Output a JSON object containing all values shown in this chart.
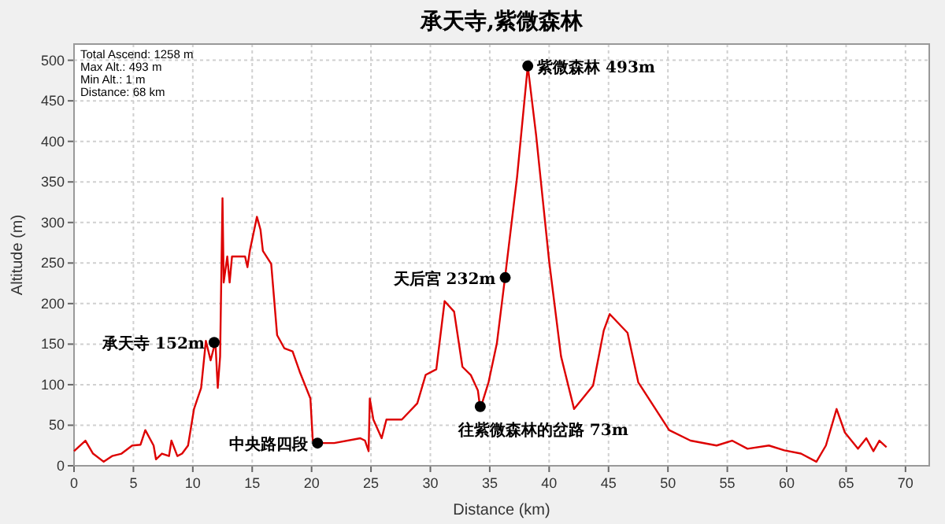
{
  "chart_data": {
    "type": "line",
    "title": "承天寺,紫微森林",
    "xlabel": "Distance (km)",
    "ylabel": "Altitude (m)",
    "xlim": [
      0,
      72
    ],
    "ylim": [
      0,
      520
    ],
    "xticks": [
      0,
      5,
      10,
      15,
      20,
      25,
      30,
      35,
      40,
      45,
      50,
      55,
      60,
      65,
      70
    ],
    "yticks": [
      0,
      50,
      100,
      150,
      200,
      250,
      300,
      350,
      400,
      450,
      500
    ],
    "grid": true,
    "marker": "none",
    "line_style": "solid",
    "series": [
      {
        "color": "#dd0000",
        "x": [
          0,
          0.96,
          1.6,
          2.5,
          3.2,
          4.0,
          4.9,
          5.6,
          6.0,
          6.7,
          6.9,
          7.4,
          8.0,
          8.2,
          8.7,
          9.1,
          9.6,
          10.1,
          10.7,
          11.1,
          11.5,
          11.9,
          12.1,
          12.3,
          12.5,
          12.6,
          12.9,
          13.1,
          13.3,
          14.4,
          14.6,
          14.8,
          15.4,
          15.7,
          15.9,
          16.6,
          17.1,
          17.7,
          18.4,
          19.0,
          19.9,
          20.1,
          20.5,
          21.9,
          24.1,
          24.5,
          24.8,
          24.9,
          25.2,
          25.9,
          26.3,
          27.6,
          28.9,
          29.6,
          30.5,
          31.2,
          32.0,
          32.7,
          33.4,
          34.0,
          34.2,
          34.9,
          35.6,
          36.3,
          37.3,
          38.2,
          38.9,
          40.0,
          41.0,
          42.1,
          43.7,
          44.6,
          45.1,
          46.6,
          47.5,
          50.1,
          51.9,
          54.1,
          55.4,
          56.7,
          58.5,
          59.8,
          61.2,
          62.5,
          63.3,
          64.2,
          64.9,
          66.0,
          66.7,
          67.3,
          67.8,
          68.4
        ],
        "values": [
          18,
          31,
          15,
          5,
          12,
          15,
          25,
          26,
          44,
          25,
          8,
          15,
          12,
          31,
          12,
          15,
          25,
          70,
          96,
          154,
          130,
          153,
          96,
          135,
          330,
          226,
          258,
          226,
          258,
          258,
          245,
          265,
          307,
          291,
          265,
          249,
          161,
          145,
          141,
          116,
          83,
          31,
          28,
          28,
          34,
          31,
          18,
          83,
          57,
          34,
          57,
          57,
          77,
          112,
          119,
          203,
          190,
          122,
          112,
          93,
          70,
          103,
          151,
          234,
          356,
          493,
          408,
          252,
          135,
          70,
          99,
          167,
          187,
          164,
          103,
          44,
          31,
          25,
          31,
          21,
          25,
          19,
          15,
          5,
          25,
          70,
          41,
          21,
          34,
          18,
          31,
          23
        ]
      }
    ],
    "annotations": [
      {
        "text": "承天寺 152m",
        "x": 11.8,
        "y": 152
      },
      {
        "text": "中央路四段",
        "x": 20.5,
        "y": 28
      },
      {
        "text": "天后宮 232m",
        "x": 36.3,
        "y": 232
      },
      {
        "text": "往紫微森林的岔路 73m",
        "x": 34.2,
        "y": 73
      },
      {
        "text": "紫微森林 493m",
        "x": 38.2,
        "y": 493
      },
      "Total Ascend: 1258 m",
      "Max Alt.: 493 m",
      "Min Alt.: 1 m",
      "Distance: 68 km"
    ]
  }
}
